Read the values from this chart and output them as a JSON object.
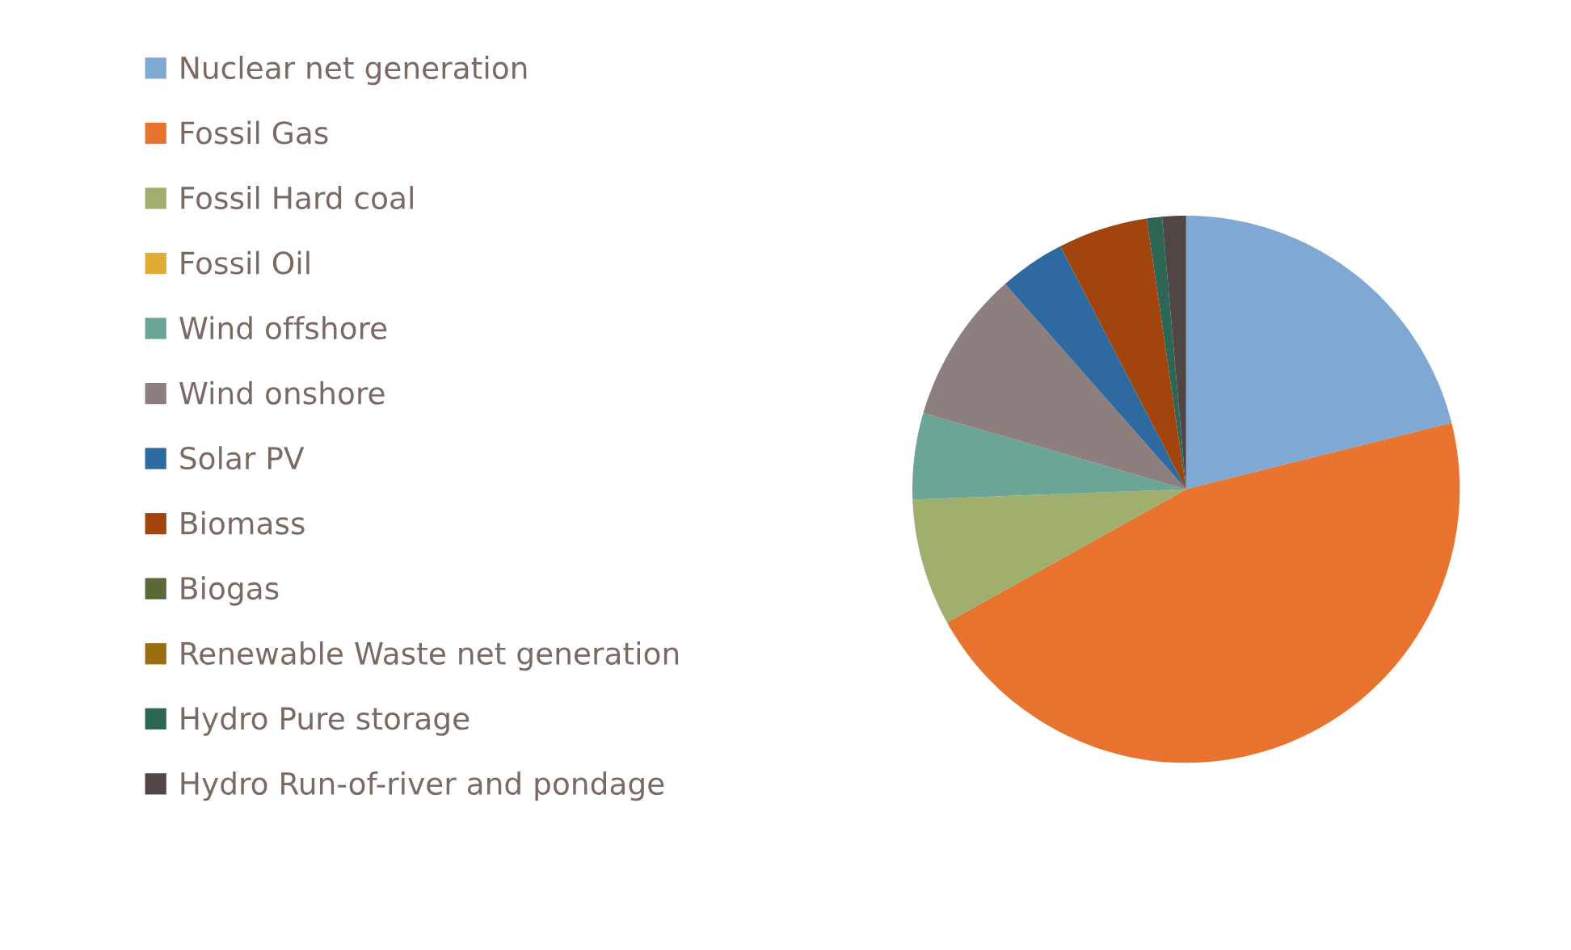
{
  "chart_data": {
    "type": "pie",
    "categories": [
      "Nuclear net generation",
      "Fossil Gas",
      "Fossil Hard coal",
      "Fossil Oil",
      "Wind offshore",
      "Wind onshore",
      "Solar PV",
      "Biomass",
      "Biogas",
      "Renewable Waste net generation",
      "Hydro Pure storage",
      "Hydro Run-of-river and pondage"
    ],
    "values": [
      21.1,
      45.8,
      7.5,
      0,
      5.1,
      9.0,
      3.9,
      5.3,
      0,
      0,
      0.9,
      1.4
    ],
    "colors": [
      "#7fa9d3",
      "#e8732f",
      "#a0ae6e",
      "#e0ac34",
      "#6aa595",
      "#8d7f7e",
      "#2e6aa0",
      "#a2440e",
      "#5a6a36",
      "#9a6e10",
      "#2e6656",
      "#514646"
    ],
    "legend": "left"
  }
}
